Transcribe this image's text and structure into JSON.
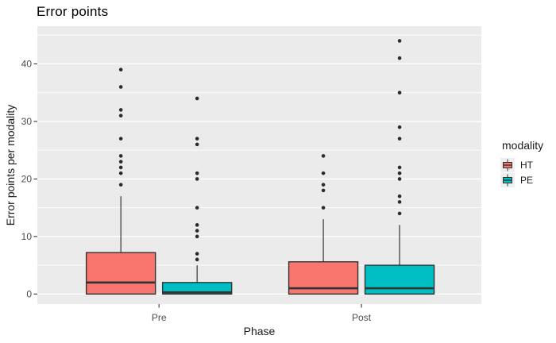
{
  "title": "Error points",
  "chart_data": {
    "type": "boxplot",
    "title": "Error points",
    "xlabel": "Phase",
    "ylabel": "Error points per modality",
    "categories": [
      "Pre",
      "Post"
    ],
    "y_axis": {
      "ticks": [
        0,
        10,
        20,
        30,
        40
      ],
      "tick_labels": [
        "0",
        "10",
        "20",
        "30",
        "40"
      ],
      "minor_ticks": [
        5,
        15,
        25,
        35,
        45
      ],
      "range": [
        -1.75,
        46.55
      ]
    },
    "legend": {
      "title": "modality",
      "position": "right"
    },
    "series": [
      {
        "name": "HT",
        "color": "#F8766D",
        "boxes": [
          {
            "category": "Pre",
            "q1": 0,
            "median": 2,
            "q3": 7.2,
            "whisker_low": 0,
            "whisker_high": 17,
            "outliers": [
              19,
              21,
              22,
              23,
              24,
              27,
              31,
              32,
              36,
              39
            ]
          },
          {
            "category": "Post",
            "q1": 0,
            "median": 1,
            "q3": 5.6,
            "whisker_low": 0,
            "whisker_high": 13,
            "outliers": [
              15,
              18,
              19,
              21,
              24
            ]
          }
        ]
      },
      {
        "name": "PE",
        "color": "#00BFC4",
        "boxes": [
          {
            "category": "Pre",
            "q1": 0,
            "median": 0.3,
            "q3": 2,
            "whisker_low": 0,
            "whisker_high": 5,
            "outliers": [
              6,
              7,
              10,
              11,
              12,
              15,
              20,
              21,
              26,
              27,
              34
            ]
          },
          {
            "category": "Post",
            "q1": 0,
            "median": 1,
            "q3": 5,
            "whisker_low": 0,
            "whisker_high": 12,
            "outliers": [
              14,
              16,
              17,
              20,
              21,
              22,
              27,
              29,
              35,
              41,
              44
            ]
          }
        ]
      }
    ],
    "style": {
      "panel_bg": "#EBEBEB",
      "grid_color": "#FFFFFF",
      "box_stroke": "#333333",
      "outlier_color": "#2b2b2b",
      "tick_text_color": "#4D4D4D",
      "legend_key_bg": "#EFEFEF"
    }
  }
}
